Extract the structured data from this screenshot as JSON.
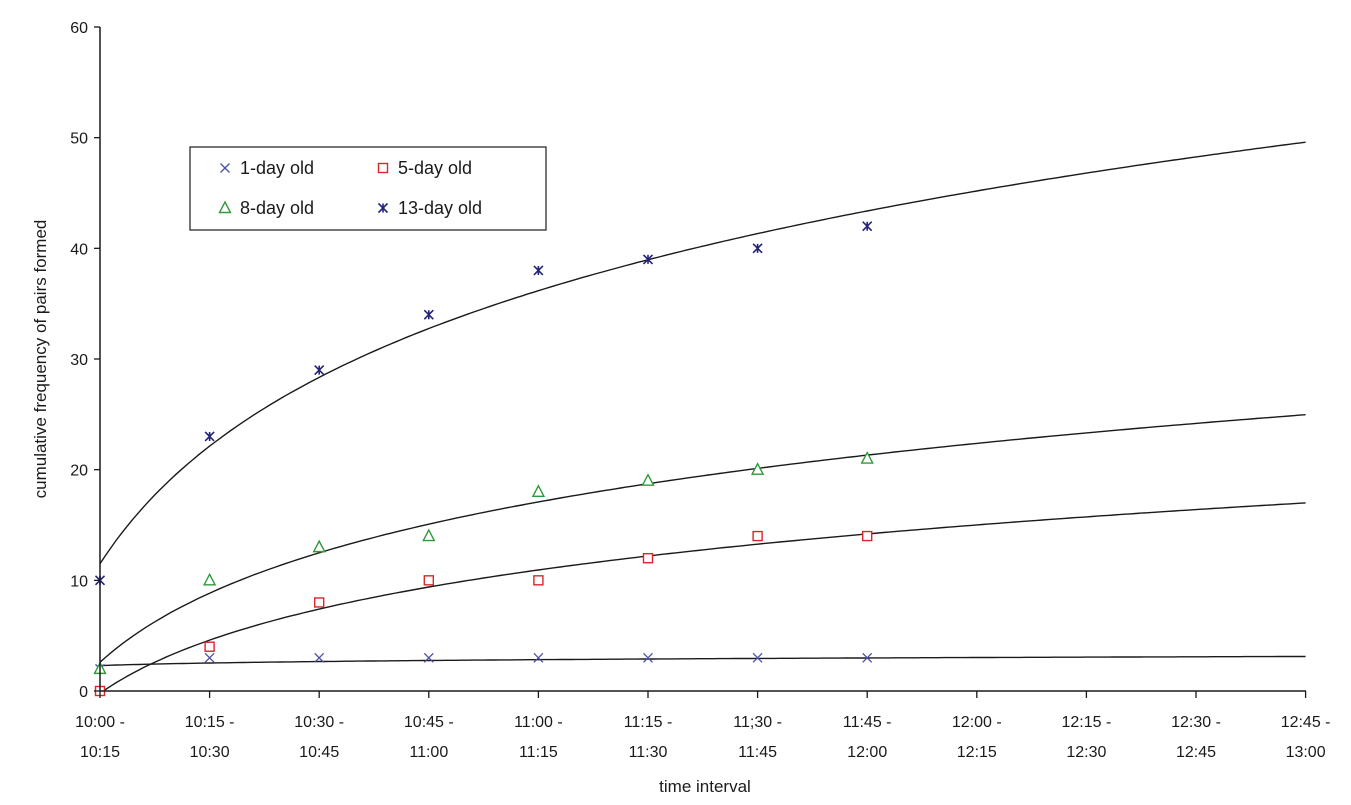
{
  "chart_data": {
    "type": "scatter",
    "xlabel": "time interval",
    "ylabel": "cumulative frequency of pairs formed",
    "ylim": [
      0,
      60
    ],
    "y_ticks": [
      "0",
      "10",
      "20",
      "30",
      "40",
      "50",
      "60"
    ],
    "categories": [
      [
        "10:00 -",
        "10:15"
      ],
      [
        "10:15 -",
        "10:30"
      ],
      [
        "10:30 -",
        "10:45"
      ],
      [
        "10:45 -",
        "11:00"
      ],
      [
        "11:00 -",
        "11:15"
      ],
      [
        "11:15 -",
        "11:30"
      ],
      [
        "11;30 -",
        "11:45"
      ],
      [
        "11:45 -",
        "12:00"
      ],
      [
        "12:00 -",
        "12:15"
      ],
      [
        "12:15 -",
        "12:30"
      ],
      [
        "12:30 -",
        "12:45"
      ],
      [
        "12:45 -",
        "13:00"
      ]
    ],
    "grid": false,
    "legend_placement": "upper-left",
    "series": [
      {
        "name": "1-day old",
        "marker": "x",
        "color": "#4a4fa8",
        "values": [
          2,
          3,
          3,
          3,
          3,
          3,
          3,
          3
        ],
        "trend": {
          "type": "logarithmic",
          "a": 2.3,
          "b": 0.33
        }
      },
      {
        "name": "5-day old",
        "marker": "square",
        "color": "#d9262b",
        "values": [
          0,
          4,
          8,
          10,
          10,
          12,
          14,
          14
        ],
        "trend": {
          "type": "logarithmic",
          "a": -0.2,
          "b": 6.92
        }
      },
      {
        "name": "8-day old",
        "marker": "triangle",
        "color": "#2e9a3a",
        "values": [
          2,
          10,
          13,
          14,
          18,
          19,
          20,
          21
        ],
        "trend": {
          "type": "logarithmic",
          "a": 2.6,
          "b": 9.0
        }
      },
      {
        "name": "13-day old",
        "marker": "asterisk",
        "color": "#23237a",
        "values": [
          10,
          23,
          29,
          34,
          38,
          39,
          40,
          42
        ],
        "trend": {
          "type": "logarithmic",
          "a": 11.5,
          "b": 15.33
        }
      }
    ]
  }
}
